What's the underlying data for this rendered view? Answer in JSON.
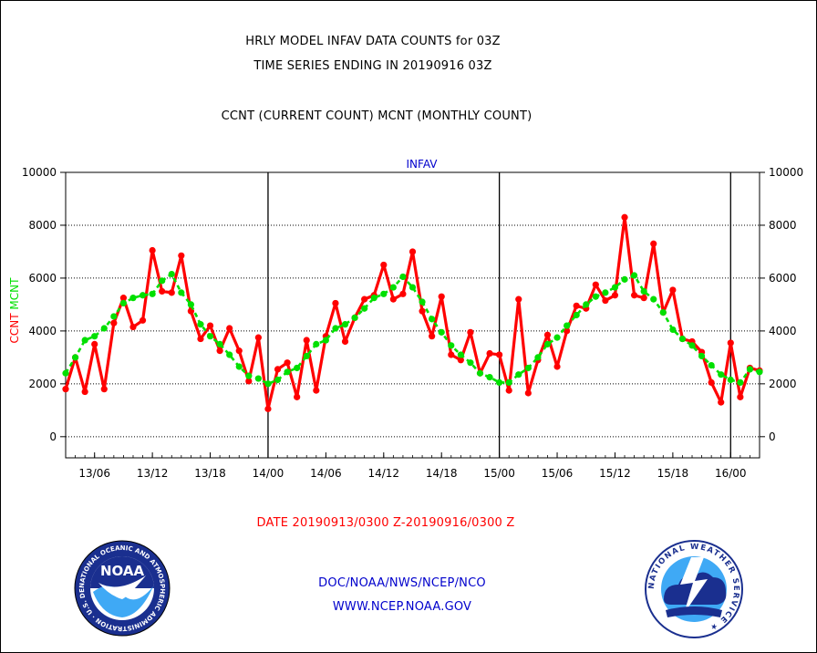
{
  "header": {
    "title_line1": "HRLY MODEL INFAV DATA COUNTS for 03Z",
    "title_line2": "TIME SERIES ENDING IN 20190916 03Z",
    "subtitle": "CCNT (CURRENT COUNT) MCNT (MONTHLY COUNT)"
  },
  "footer": {
    "date_range": "DATE 20190913/0300 Z-20190916/0300 Z",
    "org_line": "DOC/NOAA/NWS/NCEP/NCO",
    "website": "WWW.NCEP.NOAA.GOV"
  },
  "logos": {
    "noaa_text": "NOAA",
    "noaa_ring_text": "NATIONAL OCEANIC AND ATMOSPHERIC ADMINISTRATION · U.S. DEPARTMENT OF COMMERCE ·",
    "nws_ring_text": "NATIONAL WEATHER SERVICE ★"
  },
  "chart_data": {
    "type": "line",
    "title": "INFAV",
    "ylabel_left": [
      "CCNT",
      "MCNT"
    ],
    "ylim": [
      -800,
      10000
    ],
    "y_ticks": [
      0,
      2000,
      4000,
      6000,
      8000,
      10000
    ],
    "y_tick_labels": [
      "0",
      "2000",
      "4000",
      "6000",
      "8000",
      "10000"
    ],
    "x_start_hour": 3,
    "x_end_hour": 75,
    "x_ticks": [
      6,
      12,
      18,
      24,
      30,
      36,
      42,
      48,
      54,
      60,
      66,
      72
    ],
    "x_tick_labels": [
      "13/06",
      "13/12",
      "13/18",
      "14/00",
      "14/06",
      "14/12",
      "14/18",
      "15/00",
      "15/06",
      "15/12",
      "15/18",
      "16/00"
    ],
    "day_boundaries": [
      24,
      48,
      72
    ],
    "grid": true,
    "colors": {
      "ccnt": "#ff0000",
      "mcnt": "#00e000",
      "axis": "#000000",
      "title_blue": "#0000cc"
    },
    "series": [
      {
        "name": "CCNT",
        "values": [
          1800,
          3000,
          1700,
          3500,
          1800,
          4300,
          5250,
          4150,
          4400,
          7050,
          5500,
          5450,
          6850,
          4750,
          3700,
          4200,
          3250,
          4100,
          3250,
          2100,
          3750,
          1050,
          2550,
          2800,
          1500,
          3650,
          1750,
          3800,
          5050,
          3600,
          4500,
          5200,
          5350,
          6500,
          5200,
          5400,
          7000,
          4750,
          3800,
          5300,
          3100,
          2900,
          3950,
          2400,
          3150,
          3100,
          1750,
          5200,
          1650,
          2900,
          3850,
          2650,
          4000,
          4950,
          4850,
          5750,
          5150,
          5350,
          8300,
          5350,
          5250,
          7300,
          4700,
          5550,
          3700,
          3600,
          3200,
          2050,
          1300,
          3550,
          1500,
          2600,
          2500
        ]
      },
      {
        "name": "MCNT",
        "values": [
          2400,
          3000,
          3650,
          3800,
          4100,
          4550,
          5050,
          5250,
          5350,
          5400,
          5900,
          6150,
          5450,
          5000,
          4250,
          3800,
          3500,
          3100,
          2650,
          2300,
          2200,
          2000,
          2150,
          2450,
          2600,
          3050,
          3500,
          3650,
          4100,
          4250,
          4500,
          4850,
          5250,
          5400,
          5650,
          6050,
          5650,
          5100,
          4450,
          3950,
          3450,
          3100,
          2800,
          2400,
          2250,
          2050,
          2050,
          2350,
          2600,
          3000,
          3500,
          3750,
          4200,
          4600,
          5000,
          5300,
          5450,
          5650,
          5950,
          6100,
          5500,
          5200,
          4700,
          4050,
          3700,
          3450,
          3050,
          2700,
          2350,
          2150,
          2050,
          2550,
          2450
        ]
      }
    ]
  }
}
